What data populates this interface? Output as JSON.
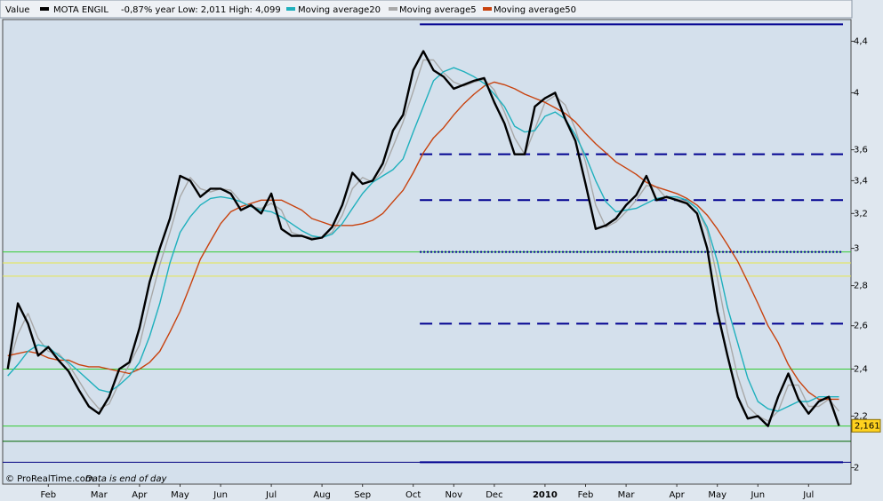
{
  "chart_data": {
    "type": "line",
    "header_label": "Value",
    "header_info": "-0,87%  year Low: 2,011  High: 4,099",
    "footer_source": "© ProRealTime.com",
    "footer_note": "Data is end of day",
    "log_scale": true,
    "ylim": [
      1.94,
      4.58
    ],
    "yticks": [
      2,
      {
        "value": 2.2,
        "label": "2,2"
      },
      {
        "value": 2.4,
        "label": "2,4"
      },
      {
        "value": 2.6,
        "label": "2,6"
      },
      {
        "value": 2.8,
        "label": "2,8"
      },
      3,
      {
        "value": 3.2,
        "label": "3,2"
      },
      {
        "value": 3.4,
        "label": "3,4"
      },
      {
        "value": 3.6,
        "label": "3,6"
      },
      4,
      {
        "value": 4.4,
        "label": "4,4"
      }
    ],
    "categories": [
      null,
      null,
      null,
      null,
      "Feb",
      null,
      null,
      null,
      null,
      "Mar",
      null,
      null,
      null,
      "Apr",
      null,
      null,
      null,
      "May",
      null,
      null,
      null,
      "Jun",
      null,
      null,
      null,
      null,
      "Jul",
      null,
      null,
      null,
      null,
      "Aug",
      null,
      null,
      null,
      "Sep",
      null,
      null,
      null,
      null,
      "Oct",
      null,
      null,
      null,
      "Nov",
      null,
      null,
      null,
      "Dec",
      null,
      null,
      null,
      null,
      "2010",
      null,
      null,
      null,
      "Feb",
      null,
      null,
      null,
      "Mar",
      null,
      null,
      null,
      null,
      "Apr",
      null,
      null,
      null,
      "May",
      null,
      null,
      null,
      "Jun",
      null,
      null,
      null,
      null,
      "Jul",
      null,
      null,
      null
    ],
    "series": [
      {
        "name": "MOTA ENGIL",
        "color": "#000000",
        "values": [
          2.4,
          2.71,
          2.61,
          2.46,
          2.5,
          2.44,
          2.39,
          2.31,
          2.24,
          2.21,
          2.28,
          2.4,
          2.43,
          2.59,
          2.82,
          3.0,
          3.17,
          3.43,
          3.4,
          3.3,
          3.35,
          3.35,
          3.32,
          3.22,
          3.25,
          3.2,
          3.32,
          3.11,
          3.07,
          3.07,
          3.05,
          3.06,
          3.12,
          3.25,
          3.45,
          3.38,
          3.4,
          3.51,
          3.73,
          3.84,
          4.17,
          4.32,
          4.17,
          4.12,
          4.03,
          4.06,
          4.09,
          4.11,
          3.93,
          3.78,
          3.57,
          3.57,
          3.9,
          3.96,
          4.0,
          3.81,
          3.66,
          3.38,
          3.11,
          3.13,
          3.17,
          3.25,
          3.31,
          3.43,
          3.28,
          3.3,
          3.28,
          3.26,
          3.2,
          3.0,
          2.67,
          2.46,
          2.28,
          2.19,
          2.2,
          2.16,
          2.28,
          2.38,
          2.27,
          2.21,
          2.26,
          2.28,
          2.161
        ]
      },
      {
        "name": "Moving average20",
        "color": "#1fb0bd",
        "values": [
          2.37,
          2.42,
          2.48,
          2.51,
          2.5,
          2.46,
          2.43,
          2.39,
          2.35,
          2.31,
          2.3,
          2.33,
          2.37,
          2.43,
          2.55,
          2.71,
          2.92,
          3.09,
          3.18,
          3.25,
          3.29,
          3.3,
          3.29,
          3.27,
          3.24,
          3.22,
          3.21,
          3.18,
          3.14,
          3.1,
          3.07,
          3.06,
          3.08,
          3.14,
          3.23,
          3.32,
          3.39,
          3.43,
          3.47,
          3.54,
          3.72,
          3.9,
          4.09,
          4.16,
          4.19,
          4.16,
          4.12,
          4.07,
          3.99,
          3.9,
          3.76,
          3.72,
          3.73,
          3.83,
          3.86,
          3.81,
          3.7,
          3.56,
          3.4,
          3.27,
          3.21,
          3.22,
          3.23,
          3.26,
          3.29,
          3.3,
          3.3,
          3.28,
          3.23,
          3.12,
          2.93,
          2.69,
          2.52,
          2.36,
          2.26,
          2.23,
          2.22,
          2.24,
          2.26,
          2.26,
          2.28,
          2.28,
          2.28
        ]
      },
      {
        "name": "Moving average5",
        "color": "#a8a8a8",
        "values": [
          2.4,
          2.56,
          2.66,
          2.54,
          2.48,
          2.47,
          2.42,
          2.35,
          2.28,
          2.23,
          2.25,
          2.34,
          2.42,
          2.51,
          2.71,
          2.91,
          3.09,
          3.3,
          3.42,
          3.35,
          3.33,
          3.35,
          3.34,
          3.27,
          3.24,
          3.23,
          3.26,
          3.22,
          3.09,
          3.07,
          3.06,
          3.06,
          3.09,
          3.19,
          3.35,
          3.42,
          3.39,
          3.46,
          3.62,
          3.79,
          4.01,
          4.25,
          4.25,
          4.15,
          4.08,
          4.05,
          4.08,
          4.1,
          4.02,
          3.86,
          3.68,
          3.57,
          3.74,
          3.93,
          3.98,
          3.91,
          3.74,
          3.52,
          3.25,
          3.12,
          3.15,
          3.21,
          3.28,
          3.37,
          3.36,
          3.29,
          3.29,
          3.27,
          3.23,
          3.1,
          2.84,
          2.57,
          2.37,
          2.24,
          2.2,
          2.18,
          2.22,
          2.33,
          2.33,
          2.24,
          2.24,
          2.27,
          2.22
        ]
      },
      {
        "name": "Moving average50",
        "color": "#c8420e",
        "values": [
          2.46,
          2.47,
          2.48,
          2.47,
          2.45,
          2.44,
          2.44,
          2.42,
          2.41,
          2.41,
          2.4,
          2.39,
          2.38,
          2.4,
          2.43,
          2.48,
          2.57,
          2.67,
          2.8,
          2.94,
          3.04,
          3.14,
          3.21,
          3.24,
          3.26,
          3.28,
          3.28,
          3.28,
          3.25,
          3.22,
          3.17,
          3.15,
          3.13,
          3.13,
          3.13,
          3.14,
          3.16,
          3.2,
          3.27,
          3.34,
          3.45,
          3.58,
          3.68,
          3.75,
          3.84,
          3.92,
          3.99,
          4.05,
          4.08,
          4.06,
          4.03,
          3.99,
          3.96,
          3.93,
          3.89,
          3.85,
          3.79,
          3.71,
          3.64,
          3.58,
          3.52,
          3.48,
          3.44,
          3.39,
          3.36,
          3.34,
          3.32,
          3.29,
          3.25,
          3.19,
          3.11,
          3.02,
          2.93,
          2.82,
          2.71,
          2.6,
          2.52,
          2.42,
          2.35,
          2.3,
          2.27,
          2.27,
          2.27
        ]
      }
    ],
    "levels": [
      {
        "value": 2.98,
        "color": "#33cc33"
      },
      {
        "value": 2.4,
        "color": "#33cc33"
      },
      {
        "value": 2.16,
        "color": "#33cc33"
      },
      {
        "value": 2.1,
        "color": "#006600"
      },
      {
        "value": 2.92,
        "color": "#e6e64d"
      },
      {
        "value": 2.85,
        "color": "#e6e64d"
      },
      {
        "value": 2.02,
        "color": "#000080"
      }
    ],
    "channel": {
      "color": "#000090",
      "levels": [
        {
          "value": 4.54,
          "style": "solid"
        },
        {
          "value": 3.57,
          "style": "dashed"
        },
        {
          "value": 3.28,
          "style": "dashed"
        },
        {
          "value": 2.98,
          "style": "dotted"
        },
        {
          "value": 2.61,
          "style": "dashed"
        },
        {
          "value": 2.02,
          "style": "solid"
        }
      ]
    },
    "last_value": {
      "value": 2.161,
      "label": "2,161",
      "color": "#ffd21f"
    }
  }
}
